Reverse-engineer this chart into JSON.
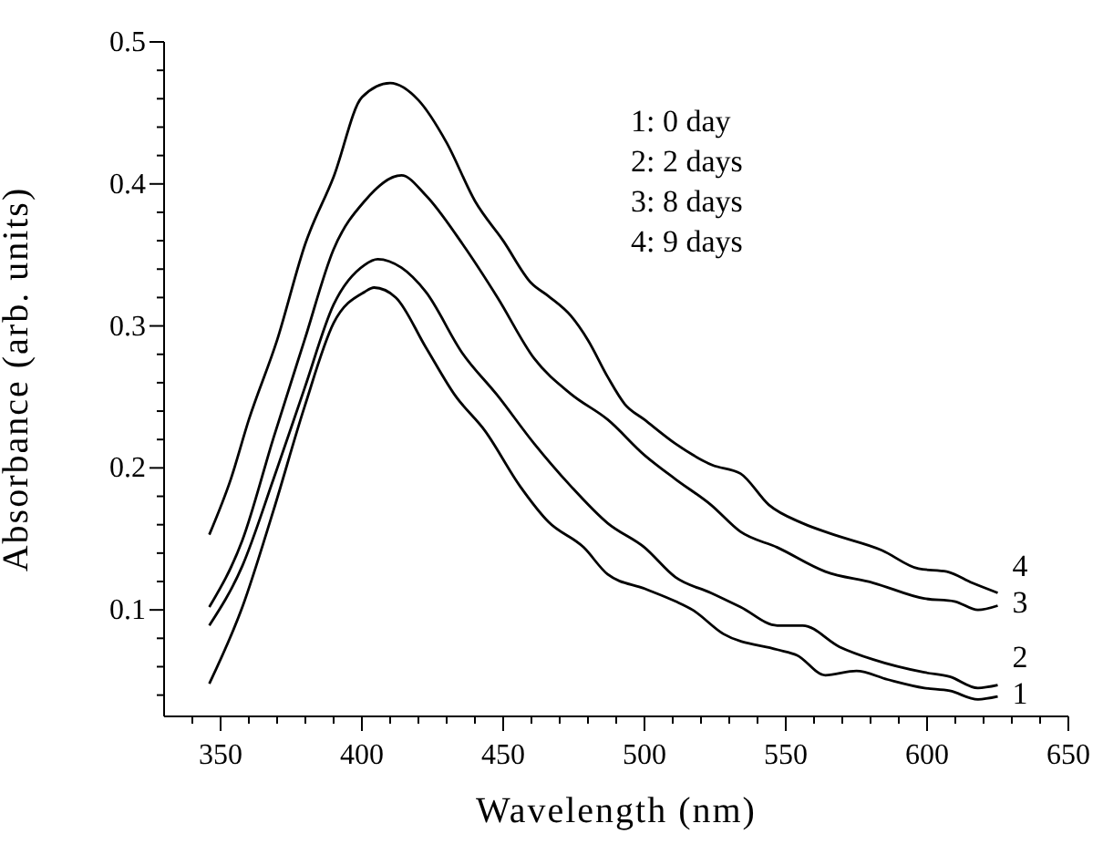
{
  "chart_data": {
    "type": "line",
    "xlabel": "Wavelength (nm)",
    "ylabel": "Absorbance (arb. units)",
    "annotations": [
      "1: 0 day",
      "2: 2 days",
      "3: 8 days",
      "4: 9 days"
    ],
    "xlim": [
      330,
      650
    ],
    "ylim": [
      0.025,
      0.5
    ],
    "xticks": [
      {
        "value": 340,
        "label": null
      },
      350,
      {
        "value": 360,
        "label": null
      },
      {
        "value": 370,
        "label": null
      },
      {
        "value": 380,
        "label": null
      },
      {
        "value": 390,
        "label": null
      },
      400,
      {
        "value": 410,
        "label": null
      },
      {
        "value": 420,
        "label": null
      },
      {
        "value": 430,
        "label": null
      },
      {
        "value": 440,
        "label": null
      },
      450,
      {
        "value": 460,
        "label": null
      },
      {
        "value": 470,
        "label": null
      },
      {
        "value": 480,
        "label": null
      },
      {
        "value": 490,
        "label": null
      },
      500,
      {
        "value": 510,
        "label": null
      },
      {
        "value": 520,
        "label": null
      },
      {
        "value": 530,
        "label": null
      },
      {
        "value": 540,
        "label": null
      },
      550,
      {
        "value": 560,
        "label": null
      },
      {
        "value": 570,
        "label": null
      },
      {
        "value": 580,
        "label": null
      },
      {
        "value": 590,
        "label": null
      },
      600,
      {
        "value": 610,
        "label": null
      },
      {
        "value": 620,
        "label": null
      },
      {
        "value": 630,
        "label": null
      },
      {
        "value": 640,
        "label": null
      },
      650
    ],
    "yticks": [
      {
        "value": 0.04,
        "label": null
      },
      {
        "value": 0.06,
        "label": null
      },
      {
        "value": 0.08,
        "label": null
      },
      0.1,
      {
        "value": 0.12,
        "label": null
      },
      {
        "value": 0.14,
        "label": null
      },
      {
        "value": 0.16,
        "label": null
      },
      {
        "value": 0.18,
        "label": null
      },
      0.2,
      {
        "value": 0.22,
        "label": null
      },
      {
        "value": 0.24,
        "label": null
      },
      {
        "value": 0.26,
        "label": null
      },
      {
        "value": 0.28,
        "label": null
      },
      0.3,
      {
        "value": 0.32,
        "label": null
      },
      {
        "value": 0.34,
        "label": null
      },
      {
        "value": 0.36,
        "label": null
      },
      {
        "value": 0.38,
        "label": null
      },
      0.4,
      {
        "value": 0.42,
        "label": null
      },
      {
        "value": 0.44,
        "label": null
      },
      {
        "value": 0.46,
        "label": null
      },
      {
        "value": 0.48,
        "label": null
      },
      0.5
    ],
    "grid": false,
    "legend": false,
    "marker": "none",
    "line_style": "solid",
    "series": [
      {
        "name": "1",
        "color": "#000000",
        "x": [
          346,
          357.7,
          368.7,
          379.7,
          390,
          401,
          404.3,
          412,
          422.6,
          433,
          443.6,
          456,
          466,
          478.5,
          487,
          500,
          511,
          517,
          528,
          547,
          554,
          564,
          575,
          586,
          599,
          608,
          618,
          625
        ],
        "values": [
          0.048,
          0.102,
          0.17,
          0.243,
          0.302,
          0.324,
          0.327,
          0.32,
          0.285,
          0.251,
          0.226,
          0.187,
          0.162,
          0.144,
          0.125,
          0.115,
          0.106,
          0.1,
          0.083,
          0.072,
          0.068,
          0.054,
          0.057,
          0.051,
          0.045,
          0.043,
          0.037,
          0.039
        ]
      },
      {
        "name": "2",
        "color": "#000000",
        "x": [
          346,
          357.7,
          368.7,
          379.7,
          390,
          401,
          405.6,
          414,
          422.6,
          435.5,
          448,
          461,
          474,
          487,
          500,
          511,
          523.5,
          534,
          547,
          556,
          569,
          581,
          599,
          608,
          618,
          625
        ],
        "values": [
          0.089,
          0.131,
          0.192,
          0.256,
          0.315,
          0.343,
          0.347,
          0.341,
          0.324,
          0.281,
          0.251,
          0.217,
          0.187,
          0.161,
          0.144,
          0.123,
          0.112,
          0.102,
          0.089,
          0.089,
          0.074,
          0.065,
          0.056,
          0.053,
          0.045,
          0.047
        ]
      },
      {
        "name": "3",
        "color": "#000000",
        "x": [
          346,
          357.7,
          368.7,
          379.7,
          390,
          401,
          414,
          422.6,
          435.5,
          448,
          461,
          474,
          487,
          500,
          511,
          523.5,
          534,
          547,
          564,
          581,
          599,
          609.7,
          618,
          625
        ],
        "values": [
          0.102,
          0.149,
          0.221,
          0.29,
          0.354,
          0.388,
          0.406,
          0.392,
          0.358,
          0.32,
          0.277,
          0.252,
          0.234,
          0.209,
          0.192,
          0.174,
          0.155,
          0.144,
          0.127,
          0.119,
          0.108,
          0.106,
          0.1,
          0.103
        ]
      },
      {
        "name": "4",
        "color": "#000000",
        "x": [
          346,
          353.6,
          360,
          370,
          380,
          390,
          400,
          410,
          420,
          430,
          440,
          450,
          460,
          466,
          474,
          480,
          487,
          493,
          500,
          511,
          524,
          534,
          544,
          556,
          567,
          584,
          597,
          607,
          616,
          625
        ],
        "values": [
          0.153,
          0.192,
          0.234,
          0.29,
          0.358,
          0.405,
          0.461,
          0.471,
          0.459,
          0.429,
          0.388,
          0.36,
          0.33,
          0.321,
          0.307,
          0.29,
          0.264,
          0.245,
          0.234,
          0.217,
          0.202,
          0.196,
          0.174,
          0.161,
          0.153,
          0.142,
          0.129,
          0.127,
          0.119,
          0.112
        ]
      }
    ]
  }
}
